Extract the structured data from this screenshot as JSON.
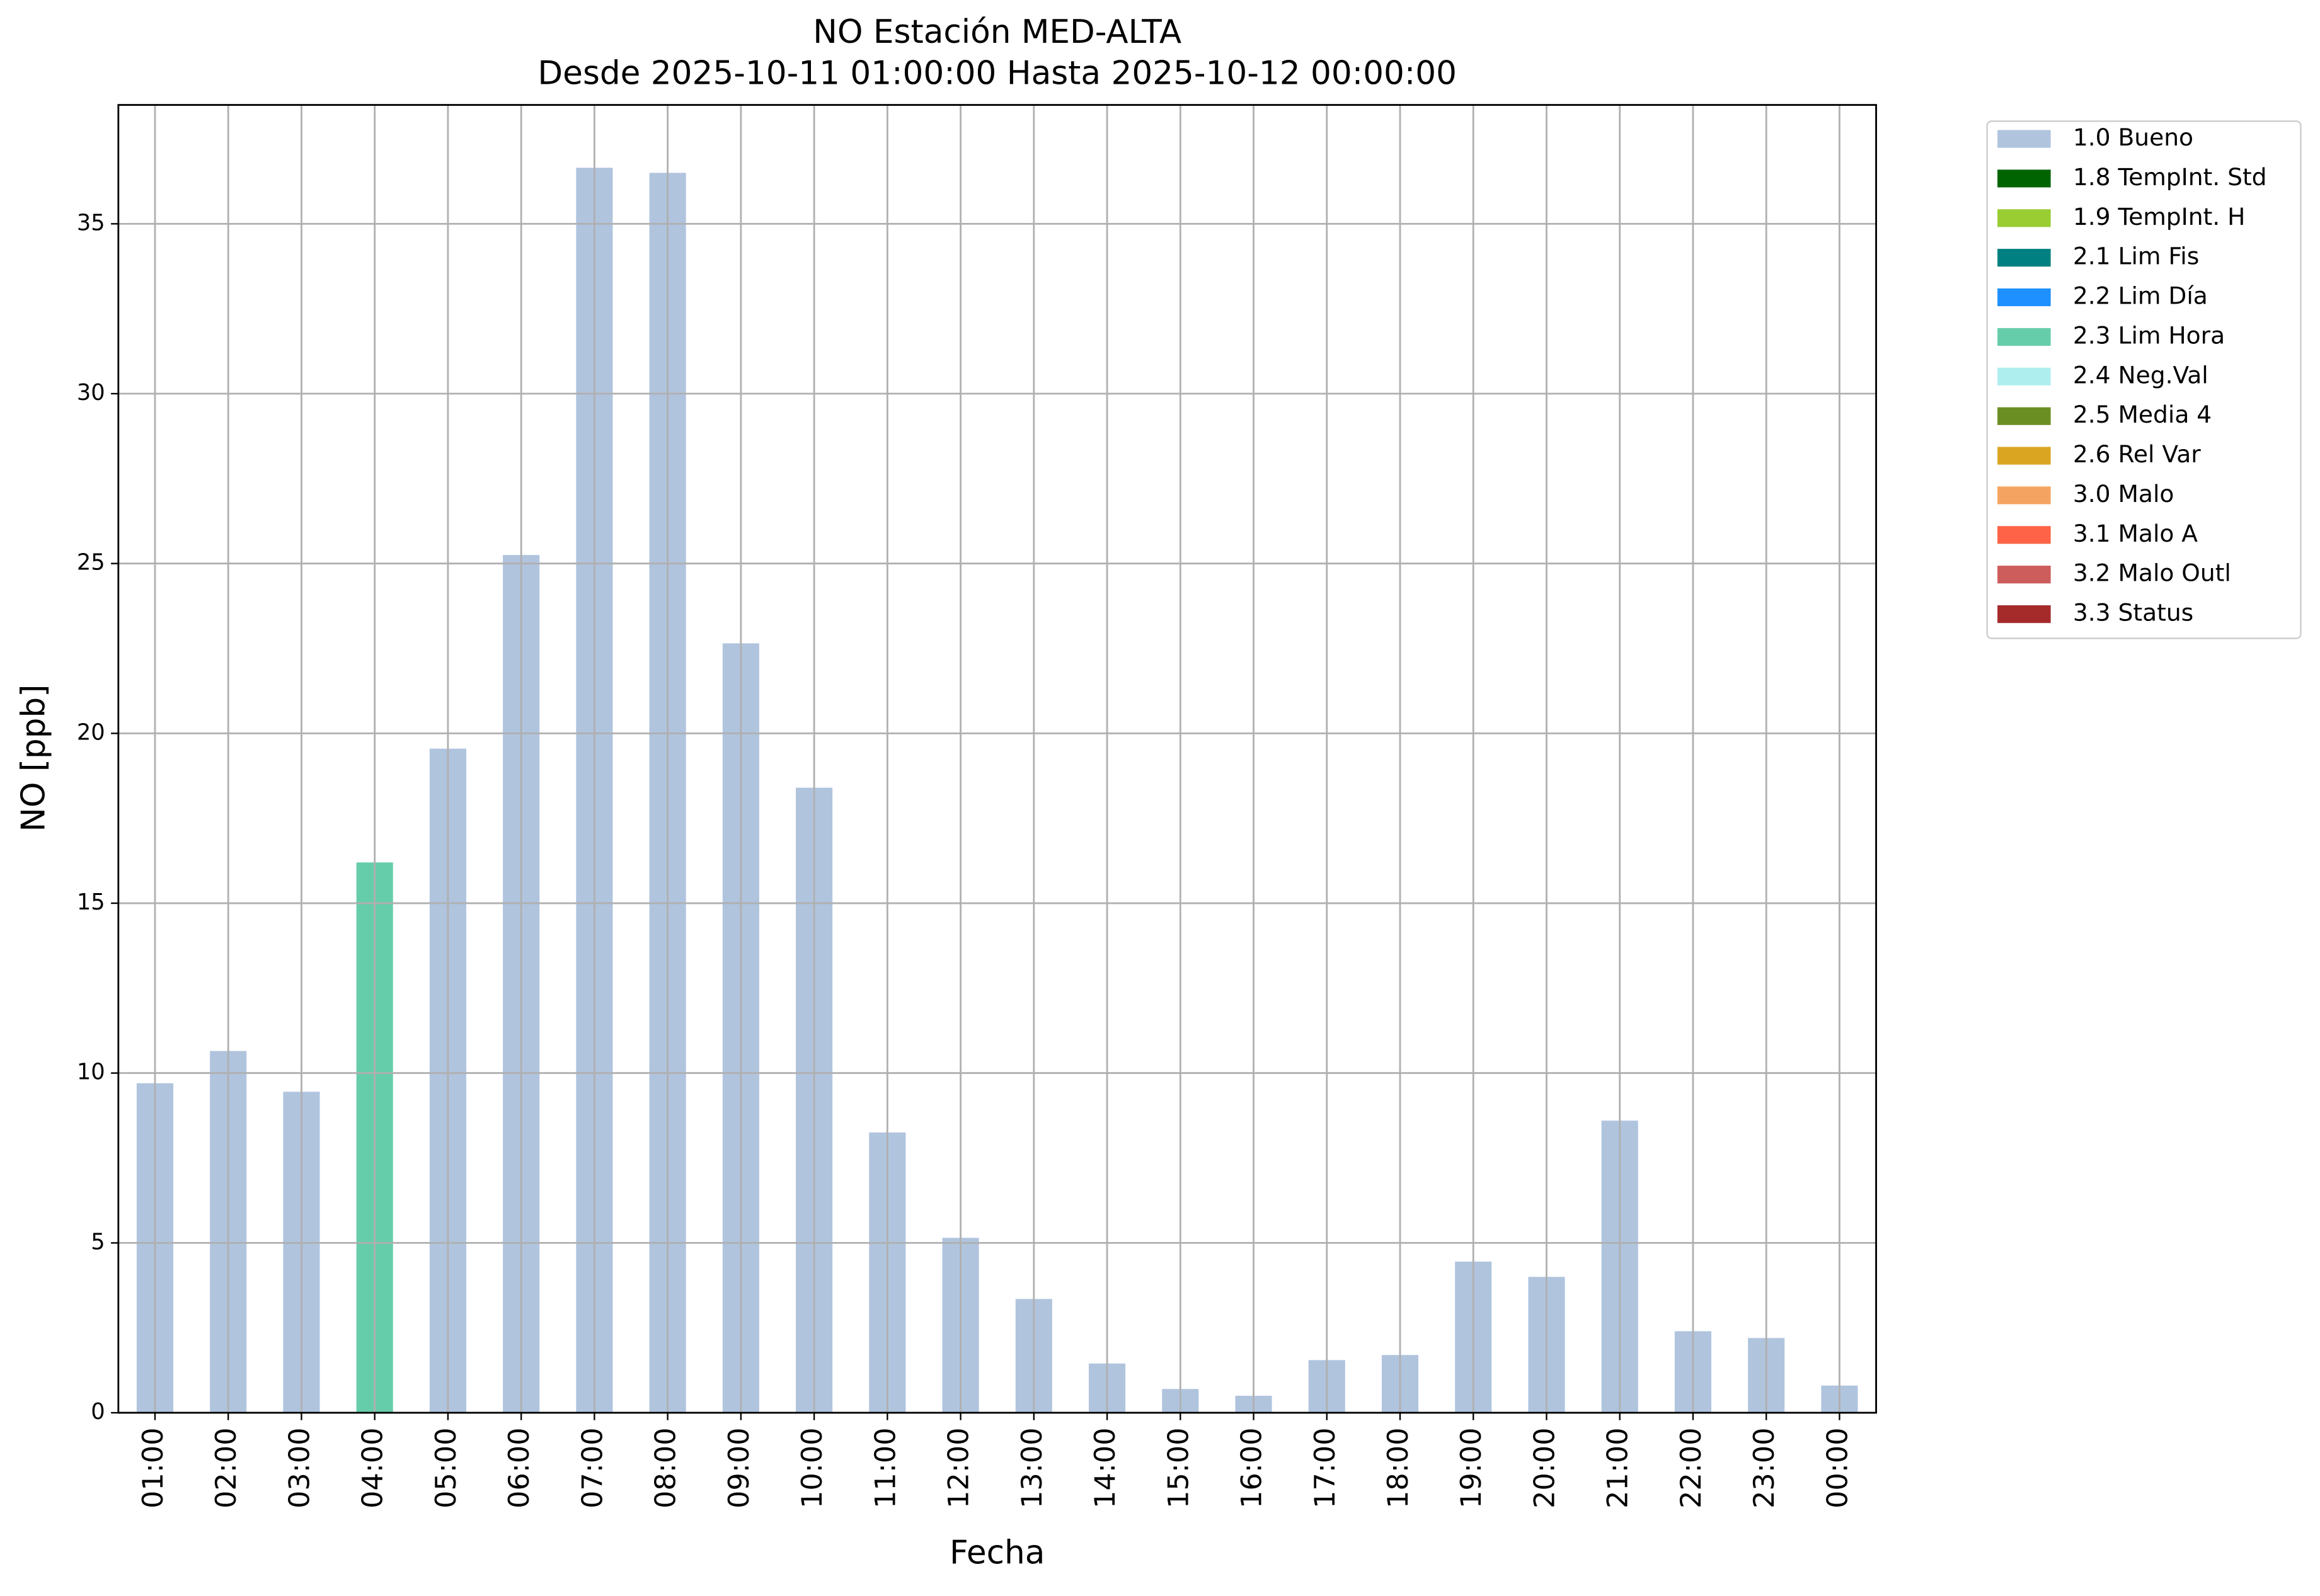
{
  "chart_data": {
    "type": "bar",
    "title": "NO Estación MED-ALTA",
    "subtitle": "Desde 2025-10-11 01:00:00 Hasta 2025-10-12 00:00:00",
    "x_label": "Fecha",
    "y_label": "NO [ppb]",
    "categories": [
      "01:00",
      "02:00",
      "03:00",
      "04:00",
      "05:00",
      "06:00",
      "07:00",
      "08:00",
      "09:00",
      "10:00",
      "11:00",
      "12:00",
      "13:00",
      "14:00",
      "15:00",
      "16:00",
      "17:00",
      "18:00",
      "19:00",
      "20:00",
      "21:00",
      "22:00",
      "23:00",
      "00:00"
    ],
    "values": [
      9.7,
      10.65,
      9.45,
      16.2,
      19.55,
      25.25,
      36.65,
      36.5,
      22.65,
      18.4,
      8.25,
      5.15,
      3.35,
      1.45,
      0.7,
      0.5,
      1.55,
      1.7,
      4.45,
      4.0,
      8.6,
      2.4,
      2.2,
      0.8
    ],
    "colors": [
      "#b0c4de",
      "#b0c4de",
      "#b0c4de",
      "#66cdaa",
      "#b0c4de",
      "#b0c4de",
      "#b0c4de",
      "#b0c4de",
      "#b0c4de",
      "#b0c4de",
      "#b0c4de",
      "#b0c4de",
      "#b0c4de",
      "#b0c4de",
      "#b0c4de",
      "#b0c4de",
      "#b0c4de",
      "#b0c4de",
      "#b0c4de",
      "#b0c4de",
      "#b0c4de",
      "#b0c4de",
      "#b0c4de",
      "#b0c4de"
    ],
    "ylim": [
      0,
      38.5
    ],
    "yticks": [
      0,
      5,
      10,
      15,
      20,
      25,
      30,
      35
    ],
    "grid": true,
    "legend_position": "outside-right",
    "legend": [
      {
        "name": "1.0 Bueno",
        "color": "#b0c4de"
      },
      {
        "name": "1.8 TempInt. Std",
        "color": "#006400"
      },
      {
        "name": "1.9 TempInt. H",
        "color": "#9acd32"
      },
      {
        "name": "2.1 Lim Fis",
        "color": "#008080"
      },
      {
        "name": "2.2 Lim Día",
        "color": "#1e90ff"
      },
      {
        "name": "2.3 Lim Hora",
        "color": "#66cdaa"
      },
      {
        "name": "2.4 Neg.Val",
        "color": "#afeeee"
      },
      {
        "name": "2.5 Media 4",
        "color": "#6b8e23"
      },
      {
        "name": "2.6 Rel Var",
        "color": "#daa520"
      },
      {
        "name": "3.0 Malo",
        "color": "#f4a460"
      },
      {
        "name": "3.1 Malo A",
        "color": "#ff6347"
      },
      {
        "name": "3.2 Malo Outl",
        "color": "#cd5c5c"
      },
      {
        "name": "3.3 Status",
        "color": "#a52a2a"
      }
    ]
  }
}
